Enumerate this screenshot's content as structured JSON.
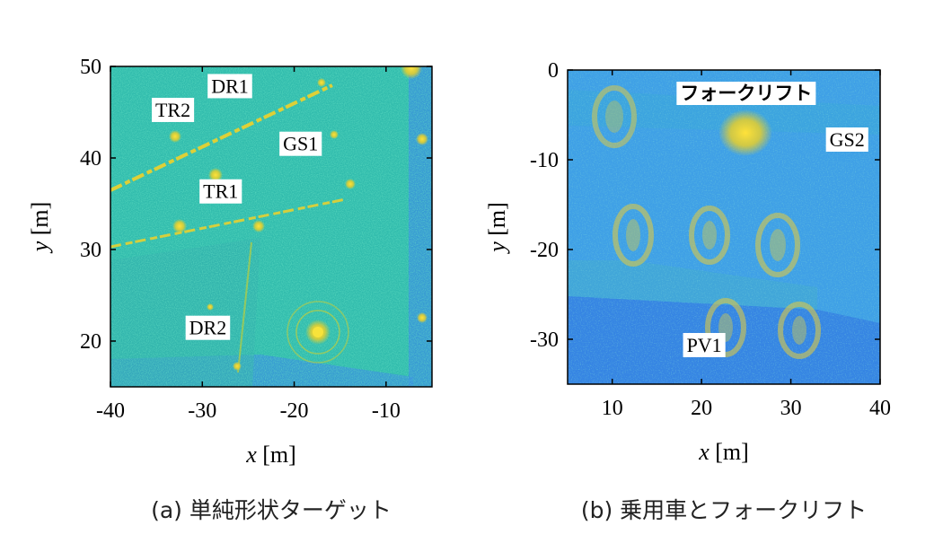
{
  "panels": [
    {
      "caption": "(a) 単純形状ターゲット",
      "xlabel_var": "x",
      "xlabel_unit": " [m]",
      "ylabel_var": "y",
      "ylabel_unit": " [m]",
      "xticks": [
        "-40",
        "-30",
        "-20",
        "-10"
      ],
      "yticks": [
        "50",
        "40",
        "30",
        "20"
      ],
      "labels": [
        "DR1",
        "TR2",
        "GS1",
        "TR1",
        "DR2"
      ]
    },
    {
      "caption": "(b) 乗用車とフォークリフト",
      "xlabel_var": "x",
      "xlabel_unit": " [m]",
      "ylabel_var": "y",
      "ylabel_unit": " [m]",
      "xticks": [
        "10",
        "20",
        "30",
        "40"
      ],
      "yticks": [
        "0",
        "-10",
        "-20",
        "-30"
      ],
      "labels": [
        "フォークリフト",
        "GS2",
        "PV1"
      ]
    }
  ],
  "chart_data": [
    {
      "type": "heatmap",
      "xlim": [
        -40,
        -5
      ],
      "ylim": [
        15,
        50
      ],
      "xticks": [
        -40,
        -30,
        -20,
        -10
      ],
      "yticks": [
        20,
        30,
        40,
        50
      ],
      "annotations": [
        {
          "text": "DR1",
          "x": -27,
          "y": 47.8
        },
        {
          "text": "TR2",
          "x": -33.2,
          "y": 45.2
        },
        {
          "text": "GS1",
          "x": -19.3,
          "y": 41.5
        },
        {
          "text": "TR1",
          "x": -28,
          "y": 36.3
        },
        {
          "text": "DR2",
          "x": -29.4,
          "y": 21.4
        }
      ]
    },
    {
      "type": "heatmap",
      "xlim": [
        5,
        40
      ],
      "ylim": [
        -35,
        0
      ],
      "xticks": [
        10,
        20,
        30,
        40
      ],
      "yticks": [
        0,
        -10,
        -20,
        -30
      ],
      "annotations": [
        {
          "text": "フォークリフト",
          "x": 25,
          "y": -2.6
        },
        {
          "text": "GS2",
          "x": 36.3,
          "y": -7.8
        },
        {
          "text": "PV1",
          "x": 20.3,
          "y": -30.7
        }
      ]
    }
  ],
  "colors": {
    "background": "#3fa0e6",
    "dark_region": "#2f6fe0",
    "speckle": "#22b8a8",
    "target": "#f2d22a"
  }
}
